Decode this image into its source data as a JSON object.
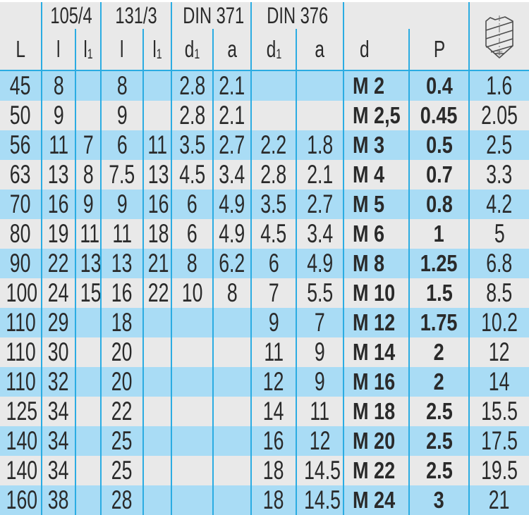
{
  "colors": {
    "row_blue": "#a9dcf5",
    "row_gray": "#e9e9e9",
    "grid_line": "#2bace2",
    "text": "#2a2a2a"
  },
  "header": {
    "groups": [
      {
        "label": ""
      },
      {
        "label": "105/4"
      },
      {
        "label": "131/3"
      },
      {
        "label": "DIN 371"
      },
      {
        "label": "DIN 376"
      },
      {
        "label": ""
      },
      {
        "label": "",
        "icon": "drill-bit-icon"
      }
    ],
    "columns": [
      {
        "base": "L",
        "sub": ""
      },
      {
        "base": "l",
        "sub": ""
      },
      {
        "base": "l",
        "sub": "1"
      },
      {
        "base": "l",
        "sub": ""
      },
      {
        "base": "l",
        "sub": "1"
      },
      {
        "base": "d",
        "sub": "1"
      },
      {
        "base": "a",
        "sub": ""
      },
      {
        "base": "d",
        "sub": "1"
      },
      {
        "base": "a",
        "sub": ""
      },
      {
        "base": "d",
        "sub": ""
      },
      {
        "base": "P",
        "sub": ""
      }
    ]
  },
  "rows": [
    [
      "45",
      "8",
      "",
      "8",
      "",
      "2.8",
      "2.1",
      "",
      "",
      "M 2",
      "0.4",
      "1.6"
    ],
    [
      "50",
      "9",
      "",
      "9",
      "",
      "2.8",
      "2.1",
      "",
      "",
      "M 2,5",
      "0.45",
      "2.05"
    ],
    [
      "56",
      "11",
      "7",
      "6",
      "11",
      "3.5",
      "2.7",
      "2.2",
      "1.8",
      "M 3",
      "0.5",
      "2.5"
    ],
    [
      "63",
      "13",
      "8",
      "7.5",
      "13",
      "4.5",
      "3.4",
      "2.8",
      "2.1",
      "M 4",
      "0.7",
      "3.3"
    ],
    [
      "70",
      "16",
      "9",
      "9",
      "16",
      "6",
      "4.9",
      "3.5",
      "2.7",
      "M 5",
      "0.8",
      "4.2"
    ],
    [
      "80",
      "19",
      "11",
      "11",
      "18",
      "6",
      "4.9",
      "4.5",
      "3.4",
      "M 6",
      "1",
      "5"
    ],
    [
      "90",
      "22",
      "13",
      "13",
      "21",
      "8",
      "6.2",
      "6",
      "4.9",
      "M 8",
      "1.25",
      "6.8"
    ],
    [
      "100",
      "24",
      "15",
      "16",
      "22",
      "10",
      "8",
      "7",
      "5.5",
      "M 10",
      "1.5",
      "8.5"
    ],
    [
      "110",
      "29",
      "",
      "18",
      "",
      "",
      "",
      "9",
      "7",
      "M 12",
      "1.75",
      "10.2"
    ],
    [
      "110",
      "30",
      "",
      "20",
      "",
      "",
      "",
      "11",
      "9",
      "M 14",
      "2",
      "12"
    ],
    [
      "110",
      "32",
      "",
      "20",
      "",
      "",
      "",
      "12",
      "9",
      "M 16",
      "2",
      "14"
    ],
    [
      "125",
      "34",
      "",
      "22",
      "",
      "",
      "",
      "14",
      "11",
      "M 18",
      "2.5",
      "15.5"
    ],
    [
      "140",
      "34",
      "",
      "25",
      "",
      "",
      "",
      "16",
      "12",
      "M 20",
      "2.5",
      "17.5"
    ],
    [
      "140",
      "34",
      "",
      "25",
      "",
      "",
      "",
      "18",
      "14.5",
      "M 22",
      "2.5",
      "19.5"
    ],
    [
      "160",
      "38",
      "",
      "28",
      "",
      "",
      "",
      "18",
      "14.5",
      "M 24",
      "3",
      "21"
    ]
  ]
}
